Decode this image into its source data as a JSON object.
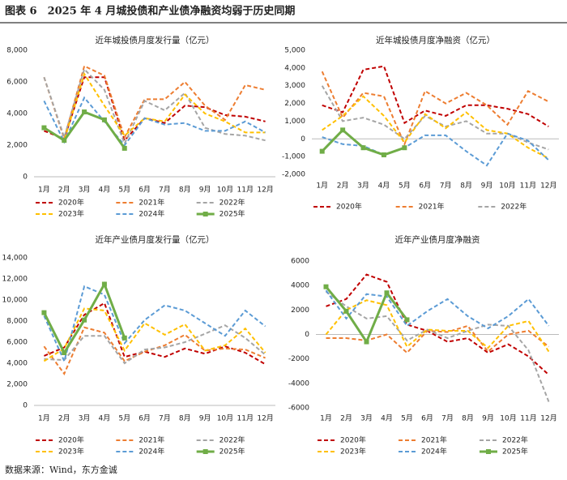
{
  "title": "图表 6　2025 年 4 月城投债和产业债净融资均弱于历史同期",
  "source": "数据来源：Wind，东方金诚",
  "chart_data": [
    {
      "type": "line",
      "title": "近年城投债月度发行量（亿元）",
      "categories": [
        "1月",
        "2月",
        "3月",
        "4月",
        "5月",
        "6月",
        "7月",
        "8月",
        "9月",
        "10月",
        "11月",
        "12月"
      ],
      "ylim": [
        0,
        8000
      ],
      "yticks": [
        0,
        {
          "value": 2000,
          "label": "2,000"
        },
        {
          "value": 4000,
          "label": "4,000"
        },
        {
          "value": 6000,
          "label": "6,000"
        },
        {
          "value": 8000,
          "label": "8,000"
        }
      ],
      "grid": false,
      "series": [
        {
          "name": "2020年",
          "color": "#C00000",
          "line_style": "dashed",
          "values": [
            2900,
            2400,
            6300,
            6300,
            2300,
            3700,
            3400,
            4500,
            4400,
            3900,
            3800,
            3500
          ]
        },
        {
          "name": "2021年",
          "color": "#ED7D31",
          "line_style": "dashed",
          "values": [
            6300,
            2400,
            7000,
            6400,
            2500,
            4900,
            4900,
            6000,
            4500,
            3600,
            5800,
            5500
          ]
        },
        {
          "name": "2022年",
          "color": "#A5A5A5",
          "line_style": "dashed",
          "values": [
            6300,
            2500,
            6800,
            5500,
            2100,
            4800,
            4200,
            5300,
            3100,
            2700,
            2600,
            2300
          ]
        },
        {
          "name": "2023年",
          "color": "#FFC000",
          "line_style": "dashed",
          "values": [
            3100,
            2300,
            6500,
            4500,
            2600,
            3700,
            3500,
            5200,
            4000,
            3500,
            2800,
            2800
          ]
        },
        {
          "name": "2024年",
          "color": "#5B9BD5",
          "line_style": "dashed",
          "values": [
            4800,
            2200,
            5000,
            3500,
            2000,
            3700,
            3300,
            3400,
            2900,
            2900,
            3500,
            2800
          ]
        },
        {
          "name": "2025年",
          "color": "#70AD47",
          "line_style": "solid",
          "marker": "square",
          "values": [
            3100,
            2300,
            4100,
            3600,
            1800,
            null,
            null,
            null,
            null,
            null,
            null,
            null
          ]
        }
      ]
    },
    {
      "type": "line",
      "title": "近年城投债月度净融资（亿元）",
      "categories": [
        "1月",
        "2月",
        "3月",
        "4月",
        "5月",
        "6月",
        "7月",
        "8月",
        "9月",
        "10月",
        "11月",
        "12月"
      ],
      "ylim": [
        -2000,
        5000
      ],
      "yticks": [
        {
          "value": -2000,
          "label": "-2,000"
        },
        {
          "value": -1000,
          "label": "-1,000"
        },
        0,
        {
          "value": 1000,
          "label": "1,000"
        },
        {
          "value": 2000,
          "label": "2,000"
        },
        {
          "value": 3000,
          "label": "3,000"
        },
        {
          "value": 4000,
          "label": "4,000"
        },
        {
          "value": 5000,
          "label": "5,000"
        }
      ],
      "grid": false,
      "series": [
        {
          "name": "2020年",
          "color": "#C00000",
          "line_style": "dashed",
          "values": [
            1900,
            1500,
            3900,
            4100,
            900,
            1600,
            1300,
            1900,
            1900,
            1700,
            1400,
            700
          ]
        },
        {
          "name": "2021年",
          "color": "#ED7D31",
          "line_style": "dashed",
          "values": [
            3800,
            1200,
            2600,
            2400,
            -300,
            2700,
            2000,
            2600,
            1900,
            800,
            2700,
            2100
          ]
        },
        {
          "name": "2022年",
          "color": "#A5A5A5",
          "line_style": "dashed",
          "values": [
            3000,
            1000,
            1200,
            800,
            0,
            1300,
            700,
            1000,
            300,
            300,
            -200,
            -600
          ]
        },
        {
          "color": "#FFC000",
          "line_style": "dashed",
          "values": [
            500,
            1300,
            2400,
            1300,
            -200,
            1400,
            600,
            1500,
            500,
            300,
            -500,
            -1100
          ]
        },
        {
          "color": "#5B9BD5",
          "line_style": "dashed",
          "values": [
            100,
            -300,
            -400,
            -900,
            -500,
            200,
            200,
            -700,
            -1500,
            300,
            -100,
            -1200
          ]
        },
        {
          "color": "#70AD47",
          "line_style": "solid",
          "marker": "square",
          "values": [
            -700,
            500,
            -500,
            -900,
            -500,
            null,
            null,
            null,
            null,
            null,
            null,
            null
          ]
        }
      ]
    },
    {
      "type": "line",
      "title": "近年产业债月度发行量（亿元）",
      "categories": [
        "1月",
        "2月",
        "3月",
        "4月",
        "5月",
        "6月",
        "7月",
        "8月",
        "9月",
        "10月",
        "11月",
        "12月"
      ],
      "ylim": [
        0,
        14000
      ],
      "yticks": [
        0,
        {
          "value": 2000,
          "label": "2,000"
        },
        {
          "value": 4000,
          "label": "4,000"
        },
        {
          "value": 6000,
          "label": "6,000"
        },
        {
          "value": 8000,
          "label": "8,000"
        },
        {
          "value": 10000,
          "label": "10,000"
        },
        {
          "value": 12000,
          "label": "12,000"
        },
        {
          "value": 14000,
          "label": "14,000"
        }
      ],
      "grid": false,
      "series": [
        {
          "name": "2020年",
          "color": "#C00000",
          "line_style": "dashed",
          "values": [
            4700,
            5500,
            8600,
            9700,
            4600,
            5100,
            4600,
            5400,
            4900,
            5600,
            5000,
            3900
          ]
        },
        {
          "name": "2021年",
          "color": "#ED7D31",
          "line_style": "dashed",
          "values": [
            5600,
            3000,
            7400,
            6900,
            4200,
            5100,
            5700,
            6700,
            5200,
            5400,
            5300,
            4500
          ]
        },
        {
          "name": "2022年",
          "color": "#A5A5A5",
          "line_style": "dashed",
          "values": [
            4400,
            4300,
            6600,
            6600,
            4000,
            5300,
            5500,
            6000,
            6800,
            7600,
            6400,
            4800
          ]
        },
        {
          "name": "2023年",
          "color": "#FFC000",
          "line_style": "dashed",
          "values": [
            4200,
            5400,
            9200,
            9000,
            5200,
            7800,
            6700,
            7700,
            5200,
            5700,
            7300,
            5000
          ]
        },
        {
          "name": "2024年",
          "color": "#5B9BD5",
          "line_style": "dashed",
          "values": [
            8500,
            4200,
            11300,
            10500,
            5900,
            8100,
            9500,
            9000,
            7800,
            6600,
            9000,
            7500
          ]
        },
        {
          "name": "2025年",
          "color": "#70AD47",
          "line_style": "solid",
          "marker": "square",
          "values": [
            8800,
            5000,
            8100,
            11500,
            6400,
            null,
            null,
            null,
            null,
            null,
            null,
            null
          ]
        }
      ]
    },
    {
      "type": "line",
      "title": "近年产业债月度净融资",
      "categories": [
        "1月",
        "2月",
        "3月",
        "4月",
        "5月",
        "6月",
        "7月",
        "8月",
        "9月",
        "10月",
        "11月",
        "12月"
      ],
      "ylim": [
        -6000,
        6000
      ],
      "yticks": [
        -6000,
        -4000,
        -2000,
        0,
        2000,
        4000,
        6000
      ],
      "grid": false,
      "series": [
        {
          "name": "2020年",
          "color": "#C00000",
          "line_style": "dashed",
          "values": [
            2300,
            2900,
            4900,
            4300,
            800,
            300,
            -600,
            -300,
            -1500,
            -800,
            -1800,
            -3300
          ]
        },
        {
          "name": "2021年",
          "color": "#ED7D31",
          "line_style": "dashed",
          "values": [
            -300,
            -300,
            -500,
            0,
            -1500,
            300,
            200,
            700,
            -1400,
            0,
            300,
            -1000
          ]
        },
        {
          "name": "2022年",
          "color": "#A5A5A5",
          "line_style": "dashed",
          "values": [
            3500,
            2300,
            1300,
            1500,
            -500,
            400,
            -300,
            300,
            800,
            700,
            -1300,
            -5500
          ]
        },
        {
          "name": "2023年",
          "color": "#FFC000",
          "line_style": "dashed",
          "values": [
            0,
            2000,
            2800,
            2400,
            -1000,
            400,
            300,
            300,
            -1100,
            700,
            1100,
            -1400
          ]
        },
        {
          "name": "2024年",
          "color": "#5B9BD5",
          "line_style": "dashed",
          "values": [
            3600,
            1300,
            3300,
            3100,
            700,
            1900,
            2900,
            1500,
            500,
            1500,
            2900,
            700
          ]
        },
        {
          "name": "2025年",
          "color": "#70AD47",
          "line_style": "solid",
          "marker": "square",
          "values": [
            3900,
            1900,
            -600,
            3400,
            1200,
            null,
            null,
            null,
            null,
            null,
            null,
            null
          ]
        }
      ]
    }
  ]
}
